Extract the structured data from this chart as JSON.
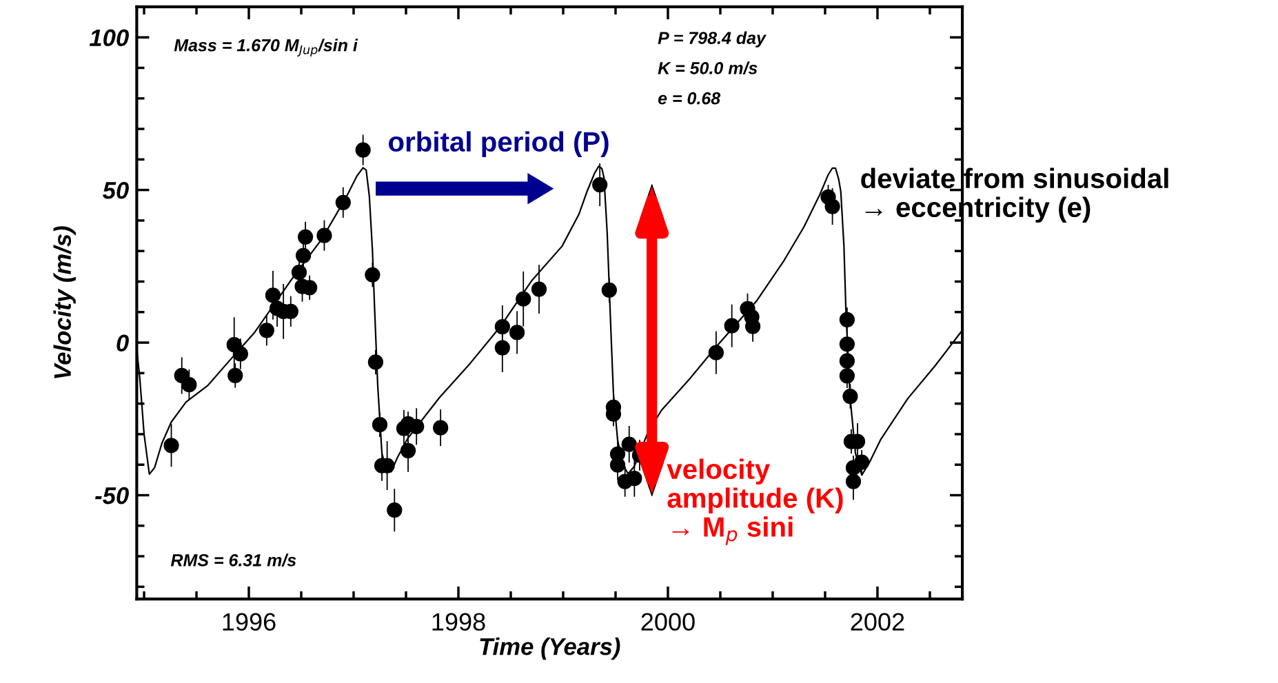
{
  "chart_data": {
    "type": "scatter",
    "xlabel": "Time (Years)",
    "ylabel": "Velocity (m/s)",
    "xlim": [
      1994.93,
      2002.81
    ],
    "ylim": [
      -84,
      110
    ],
    "xticks": [
      {
        "value": 1995,
        "label": null
      },
      {
        "value": 1995.5,
        "label": null
      },
      1996,
      {
        "value": 1996.5,
        "label": null
      },
      {
        "value": 1997,
        "label": null
      },
      {
        "value": 1997.5,
        "label": null
      },
      1998,
      {
        "value": 1998.5,
        "label": null
      },
      {
        "value": 1999,
        "label": null
      },
      {
        "value": 1999.5,
        "label": null
      },
      2000,
      {
        "value": 2000.5,
        "label": null
      },
      {
        "value": 2001,
        "label": null
      },
      {
        "value": 2001.5,
        "label": null
      },
      2002,
      {
        "value": 2002.5,
        "label": null
      }
    ],
    "yticks": [
      {
        "value": -80,
        "label": null
      },
      {
        "value": -70,
        "label": null
      },
      {
        "value": -60,
        "label": null
      },
      -50,
      {
        "value": -40,
        "label": null
      },
      {
        "value": -30,
        "label": null
      },
      {
        "value": -20,
        "label": null
      },
      {
        "value": -10,
        "label": null
      },
      0,
      {
        "value": 10,
        "label": null
      },
      {
        "value": 20,
        "label": null
      },
      {
        "value": 30,
        "label": null
      },
      {
        "value": 40,
        "label": null
      },
      50,
      {
        "value": 60,
        "label": null
      },
      {
        "value": 70,
        "label": null
      },
      {
        "value": 80,
        "label": null
      },
      {
        "value": 90,
        "label": null
      },
      100
    ],
    "grid": false,
    "legend": false,
    "series": [
      {
        "color": "#000000",
        "marker": "circle",
        "x": [
          1995.26,
          1995.36,
          1995.43,
          1995.86,
          1995.92,
          1995.87,
          1996.17,
          1996.23,
          1996.27,
          1996.33,
          1996.4,
          1996.51,
          1996.58,
          1996.48,
          1996.52,
          1996.54,
          1996.72,
          1996.9,
          1997.09,
          1997.18,
          1997.21,
          1997.25,
          1997.27,
          1997.32,
          1997.39,
          1997.48,
          1997.52,
          1997.6,
          1997.52,
          1997.83,
          1998.42,
          1998.42,
          1998.56,
          1998.62,
          1998.77,
          1999.35,
          1999.44,
          1999.48,
          1999.48,
          1999.52,
          1999.52,
          1999.59,
          1999.63,
          1999.68,
          1999.73,
          2000.46,
          2000.61,
          2000.76,
          2000.8,
          2000.81,
          2001.53,
          2001.57,
          2001.71,
          2001.71,
          2001.71,
          2001.71,
          2001.74,
          2001.75,
          2001.81,
          2001.85,
          2001.77,
          2001.77
        ],
        "values": [
          -33.7,
          -10.8,
          -13.8,
          -0.7,
          -3.7,
          -10.8,
          4.0,
          15.5,
          11.2,
          10.2,
          10.2,
          18.4,
          18.0,
          23.0,
          28.5,
          34.6,
          35.1,
          45.9,
          63.1,
          22.2,
          -6.4,
          -26.9,
          -40.3,
          -40.3,
          -54.9,
          -28.1,
          -26.6,
          -27.5,
          -35.4,
          -27.9,
          5.2,
          -1.7,
          3.3,
          14.3,
          17.5,
          51.7,
          17.2,
          -21.2,
          -23.4,
          -36.5,
          -40.1,
          -45.5,
          -33.3,
          -44.5,
          -36.9,
          -3.3,
          5.5,
          11.1,
          8.4,
          5.3,
          47.7,
          44.6,
          7.5,
          -0.5,
          -6.0,
          -10.9,
          -17.6,
          -32.4,
          -32.4,
          -39.2,
          -41.0,
          -45.5
        ],
        "errors": [
          7,
          6,
          5,
          9,
          5,
          4,
          5,
          8,
          6,
          9,
          5,
          5,
          4,
          5,
          5,
          5,
          5,
          5,
          5,
          4,
          4,
          4,
          5,
          8,
          7,
          6,
          4,
          6,
          7,
          6,
          7,
          8,
          7,
          9,
          8,
          7,
          4,
          4,
          4,
          5,
          5,
          5,
          6,
          6,
          5,
          7,
          7,
          5,
          5,
          5,
          4,
          6,
          4,
          4,
          4,
          4,
          4,
          4,
          6,
          4,
          4,
          6
        ]
      },
      {
        "type": "line",
        "color": "#000000",
        "marker": "none",
        "line_style": "solid",
        "x": [
          1994.93,
          1994.96,
          1995.0,
          1995.05,
          1995.1,
          1995.17,
          1995.26,
          1995.4,
          1995.61,
          1995.8,
          1996.05,
          1996.4,
          1996.7,
          1996.93,
          1997.03,
          1997.09,
          1997.12,
          1997.15,
          1997.18,
          1997.2,
          1997.23,
          1997.27,
          1997.31,
          1997.36,
          1997.42,
          1997.52,
          1997.82,
          1998.11,
          1998.4,
          1998.7,
          1998.99,
          1999.15,
          1999.23,
          1999.3,
          1999.34,
          1999.37,
          1999.39,
          1999.42,
          1999.46,
          1999.48,
          1999.52,
          1999.57,
          1999.62,
          1999.68,
          1999.81,
          1999.94,
          2000.2,
          2000.46,
          2000.85,
          2001.11,
          2001.3,
          2001.45,
          2001.53,
          2001.57,
          2001.6,
          2001.63,
          2001.65,
          2001.68,
          2001.7,
          2001.74,
          2001.79,
          2001.85,
          2001.92,
          2002.03,
          2002.29,
          2002.55,
          2002.8
        ],
        "values": [
          -2,
          -12,
          -30,
          -43.1,
          -41,
          -33,
          -26,
          -19.5,
          -14,
          -6.5,
          3.1,
          20.3,
          34.1,
          47.7,
          54.5,
          57.3,
          56.5,
          48,
          30,
          11.4,
          -14,
          -36.2,
          -41.5,
          -42.3,
          -37.5,
          -31.2,
          -18,
          -6.9,
          5.2,
          20.3,
          31.6,
          42,
          49.7,
          55.5,
          57.8,
          57,
          54,
          36.1,
          0.1,
          -16.7,
          -32,
          -40,
          -43,
          -40.5,
          -29.3,
          -22.1,
          -12.2,
          -1.4,
          13.8,
          27,
          38,
          48.5,
          55,
          57.2,
          57.1,
          53.5,
          49.5,
          31.6,
          9.2,
          -18.4,
          -36.3,
          -43.4,
          -39.5,
          -31.8,
          -18.3,
          -7.6,
          3.6
        ]
      }
    ],
    "annotations": [
      "Mass = 1.670 M$_{Jup}$/sin i",
      "P = 798.4 day",
      "K = 50.0 m/s",
      "e = 0.68",
      "RMS = 6.31 m/s",
      "orbital period (P)",
      "deviate from sinusoidal\n→ eccentricity (e)",
      "velocity\namplitude (K)\n→ M$_{p}$ sini"
    ]
  }
}
